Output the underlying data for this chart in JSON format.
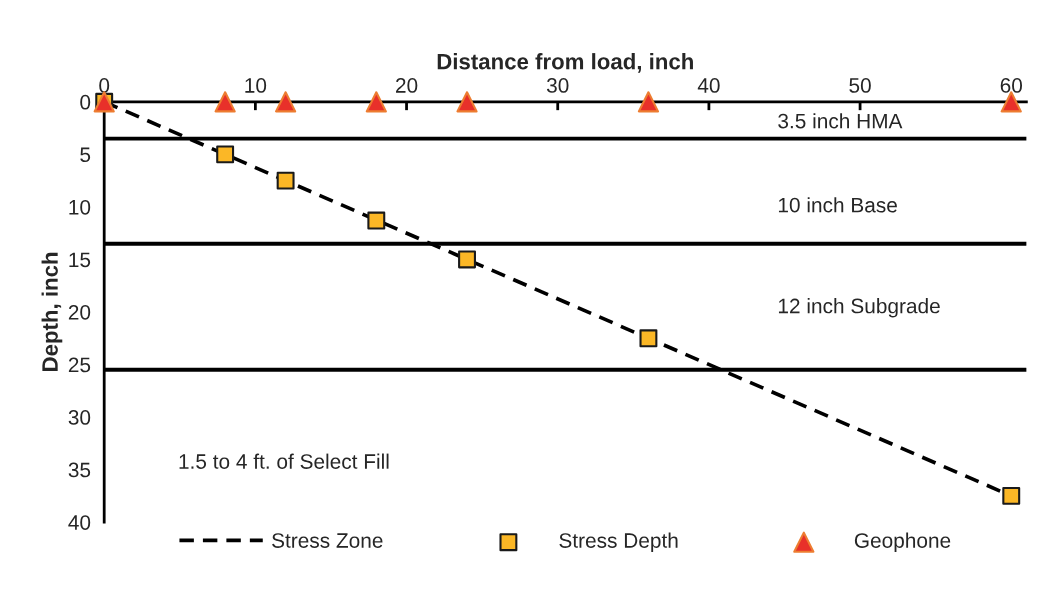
{
  "chart_data": {
    "type": "line",
    "xlabel": "Distance from load, inch",
    "ylabel": "Depth, inch",
    "xlim": [
      0,
      61
    ],
    "xticks": [
      0,
      10,
      20,
      30,
      40,
      50,
      60
    ],
    "ylim": [
      40,
      0
    ],
    "yticks": [
      0,
      5,
      10,
      15,
      20,
      25,
      30,
      35,
      40
    ],
    "series": [
      {
        "name": "Stress Zone",
        "color": "#000000",
        "line_style": "dashed",
        "marker": "none",
        "x": [
          0,
          60
        ],
        "values": [
          0,
          37.5
        ]
      },
      {
        "name": "Stress Depth",
        "type": "scatter",
        "color": "#fbb726",
        "marker": "square",
        "x": [
          0,
          8,
          12,
          18,
          24,
          36,
          60
        ],
        "values": [
          0,
          5,
          7.5,
          11.3,
          15,
          22.5,
          37.5
        ]
      },
      {
        "name": "Geophone",
        "type": "scatter",
        "color": "#e8302a",
        "marker": "triangle",
        "x": [
          0,
          8,
          12,
          18,
          24,
          36,
          60
        ],
        "values": [
          0,
          0,
          0,
          0,
          0,
          0,
          0
        ]
      }
    ],
    "ref_lines": [
      {
        "axis": "y",
        "value": 3.5,
        "color": "#000000"
      },
      {
        "axis": "y",
        "value": 13.5,
        "color": "#000000"
      },
      {
        "axis": "y",
        "value": 25.5,
        "color": "#000000"
      }
    ],
    "annotations": [
      "3.5 inch HMA",
      "10 inch Base",
      "12 inch Subgrade",
      "1.5 to 4 ft. of Select Fill"
    ],
    "grid": false,
    "legend": "bottom"
  }
}
